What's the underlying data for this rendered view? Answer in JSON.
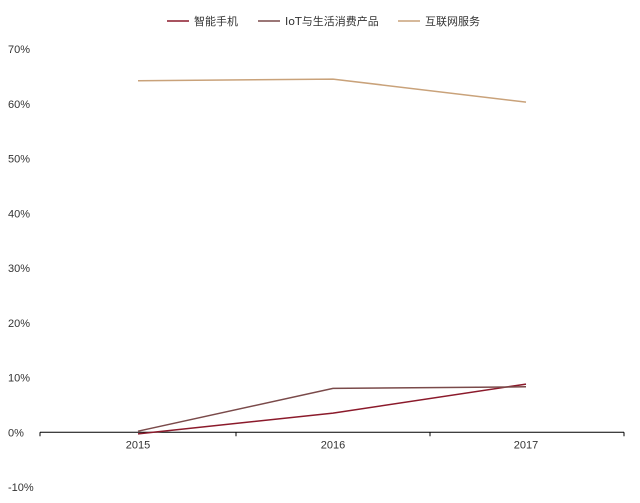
{
  "chart_data": {
    "type": "line",
    "x": [
      "2015",
      "2016",
      "2017"
    ],
    "series": [
      {
        "name": "智能手机",
        "color": "#8b1a2b",
        "values": [
          -0.3,
          3.5,
          8.8
        ]
      },
      {
        "name": "IoT与生活消费产品",
        "color": "#7a4a4a",
        "values": [
          0.2,
          8.0,
          8.3
        ]
      },
      {
        "name": "互联网服务",
        "color": "#c9a27a",
        "values": [
          64.2,
          64.5,
          60.3
        ]
      }
    ],
    "ylim": [
      -10,
      70
    ],
    "yticks": [
      "70%",
      "60%",
      "50%",
      "40%",
      "30%",
      "20%",
      "10%",
      "0%",
      "-10%"
    ],
    "grid": false,
    "legend": "top-center"
  }
}
